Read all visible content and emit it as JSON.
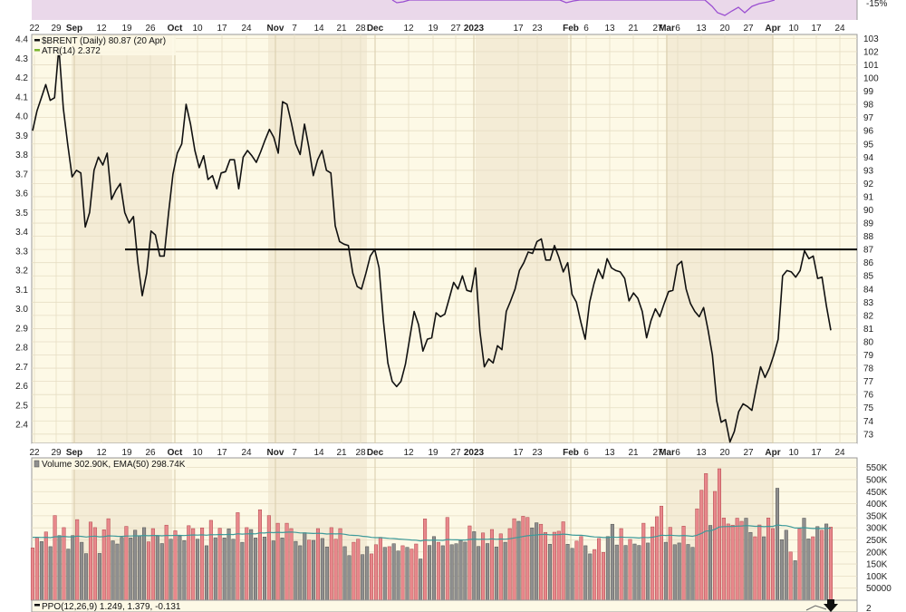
{
  "colors": {
    "page_bg": "#ffffff",
    "panel_bg": "#fdf9e6",
    "month_band": "#f4ecd6",
    "grid": "#e6ddc4",
    "price_line": "#111111",
    "resistance_line": "#000000",
    "volume_up": "#e8888c",
    "volume_up_stroke": "#b0454a",
    "volume_down": "#8f8f8f",
    "volume_down_stroke": "#4e4e4e",
    "ema_line": "#3d9a9a",
    "atr_label": "#7ab530",
    "top_indicator_fill": "#ead8ea",
    "top_indicator_line": "#9b4fd1",
    "arrow": "#111111"
  },
  "date_axis": {
    "labels": [
      {
        "text": "22",
        "bold": false
      },
      {
        "text": "29",
        "bold": false
      },
      {
        "text": "Sep",
        "bold": true
      },
      {
        "text": "12",
        "bold": false
      },
      {
        "text": "19",
        "bold": false
      },
      {
        "text": "26",
        "bold": false
      },
      {
        "text": "Oct",
        "bold": true
      },
      {
        "text": "10",
        "bold": false
      },
      {
        "text": "17",
        "bold": false
      },
      {
        "text": "24",
        "bold": false
      },
      {
        "text": "Nov",
        "bold": true
      },
      {
        "text": "7",
        "bold": false
      },
      {
        "text": "14",
        "bold": false
      },
      {
        "text": "21",
        "bold": false
      },
      {
        "text": "28",
        "bold": false
      },
      {
        "text": "Dec",
        "bold": true
      },
      {
        "text": "12",
        "bold": false
      },
      {
        "text": "19",
        "bold": false
      },
      {
        "text": "27",
        "bold": false
      },
      {
        "text": "2023",
        "bold": true
      },
      {
        "text": "17",
        "bold": false
      },
      {
        "text": "23",
        "bold": false
      },
      {
        "text": "Feb",
        "bold": true
      },
      {
        "text": "6",
        "bold": false
      },
      {
        "text": "13",
        "bold": false
      },
      {
        "text": "21",
        "bold": false
      },
      {
        "text": "27",
        "bold": false
      },
      {
        "text": "Mar",
        "bold": true
      },
      {
        "text": "6",
        "bold": false
      },
      {
        "text": "13",
        "bold": false
      },
      {
        "text": "20",
        "bold": false
      },
      {
        "text": "27",
        "bold": false
      },
      {
        "text": "Apr",
        "bold": true
      },
      {
        "text": "10",
        "bold": false
      },
      {
        "text": "17",
        "bold": false
      },
      {
        "text": "24",
        "bold": false
      }
    ]
  },
  "top_indicator": {
    "right_tick": "-15%"
  },
  "chart_data": [
    {
      "type": "line",
      "legend": [
        "$BRENT (Daily) 80.87 (20 Apr)",
        "ATR(14) 2.372"
      ],
      "left_axis_ticks": [
        4.4,
        4.3,
        4.2,
        4.1,
        4.0,
        3.9,
        3.8,
        3.7,
        3.6,
        3.5,
        3.4,
        3.3,
        3.2,
        3.1,
        3.0,
        2.9,
        2.8,
        2.7,
        2.6,
        2.5,
        2.4
      ],
      "right_axis_ticks": [
        103,
        102,
        101,
        100,
        99,
        98,
        97,
        96,
        95,
        94,
        93,
        92,
        91,
        90,
        89,
        88,
        87,
        86,
        85,
        84,
        83,
        82,
        81,
        80,
        79,
        78,
        77,
        76,
        75,
        74,
        73
      ],
      "ylim": [
        72.3,
        103.3
      ],
      "horizontal_line": 87.0,
      "series": [
        {
          "values": [
            96,
            97.5,
            98.5,
            99.5,
            98.3,
            98.5,
            102.3,
            97.7,
            95,
            92.5,
            93,
            92.8,
            88.7,
            89.8,
            93,
            94,
            93.4,
            94.3,
            90.8,
            91.5,
            92,
            89.8,
            89,
            89.5,
            86,
            83.5,
            85.2,
            88.4,
            88.1,
            86.5,
            86.5,
            89.8,
            92.7,
            94.3,
            95,
            98,
            96.5,
            94.5,
            93.2,
            94.1,
            92.3,
            92.6,
            91.6,
            92.8,
            92.9,
            93.8,
            93.8,
            91.6,
            94,
            94.5,
            94.1,
            93.6,
            94.4,
            95.3,
            96.1,
            95.5,
            94.3,
            98.2,
            98,
            96.6,
            95,
            94.2,
            96.5,
            94.7,
            92.6,
            93.8,
            94.5,
            93,
            92.8,
            88.8,
            87.6,
            87.4,
            87.3,
            85.2,
            84.2,
            84,
            85.2,
            86.5,
            87,
            85.6,
            81.5,
            78.4,
            77,
            76.6,
            77,
            78.3,
            80.3,
            82.3,
            81.3,
            79.3,
            80.2,
            80.3,
            82.2,
            81.9,
            82.1,
            83.3,
            84.5,
            84,
            85,
            83.9,
            83.8,
            85.6,
            80.8,
            78.1,
            78.7,
            78.4,
            79.7,
            79.4,
            82.3,
            83.1,
            84,
            85.4,
            86,
            86.8,
            86.7,
            87.6,
            87.8,
            86.2,
            86.2,
            87.3,
            86.4,
            85.3,
            86,
            83.6,
            83,
            81.5,
            80.2,
            83,
            84.4,
            85.5,
            84.8,
            86.3,
            85.6,
            85.4,
            85.3,
            84.8,
            83.1,
            83.7,
            83.3,
            82.3,
            80.3,
            81.6,
            82.5,
            81.9,
            82.9,
            83.8,
            83.9,
            85.8,
            86.1,
            84,
            82.9,
            82.3,
            81.9,
            82.6,
            80.9,
            79,
            75.5,
            73.9,
            74.1,
            72.4,
            73.2,
            74.7,
            75.3,
            75.1,
            74.8,
            76.5,
            78.1,
            77.3,
            78,
            79,
            80.2,
            85,
            85.4,
            85.3,
            84.9,
            85.4,
            86.9,
            86.3,
            86.5,
            84.8,
            84.9,
            82.7,
            80.87
          ]
        }
      ]
    },
    {
      "type": "bar",
      "legend": "Volume 302.90K, EMA(50) 298.74K",
      "right_axis_labels": [
        "550K",
        "500K",
        "450K",
        "400K",
        "350K",
        "300K",
        "250K",
        "200K",
        "150K",
        "100K",
        "50000"
      ],
      "ylim": [
        0,
        575000
      ],
      "ema50": 298740,
      "up_days": [
        1,
        1,
        0,
        1,
        0,
        1,
        0,
        1,
        0,
        0,
        1,
        0,
        0,
        1,
        1,
        0,
        1,
        1,
        0,
        0,
        0,
        1,
        0,
        0,
        0,
        0,
        1,
        1,
        0,
        0,
        1,
        0,
        1,
        0,
        0,
        1,
        1,
        0,
        1,
        0,
        1,
        0,
        1,
        0,
        0,
        0,
        1,
        0,
        1,
        0,
        0,
        1,
        0,
        1,
        0,
        1,
        0,
        1,
        1,
        0,
        0,
        0,
        1,
        0,
        1,
        0,
        0,
        1,
        1,
        1,
        0,
        0,
        1,
        1,
        0,
        0,
        1,
        1,
        1,
        0,
        1,
        0,
        0,
        1,
        0,
        1,
        1,
        0,
        1,
        0,
        0,
        1,
        0,
        1,
        0,
        0,
        0,
        0,
        1,
        0,
        0,
        1,
        0,
        1,
        0,
        1,
        0,
        1,
        1,
        0,
        1,
        1,
        0,
        0,
        1,
        1,
        0,
        1,
        1,
        1,
        0,
        0,
        1,
        1,
        0,
        0,
        1,
        1,
        1,
        0,
        0,
        0,
        1,
        0,
        1,
        0,
        0,
        1,
        0,
        1,
        1,
        1,
        0,
        1,
        0,
        0,
        1,
        0,
        0,
        1,
        1,
        1,
        0,
        1,
        1,
        1,
        1,
        1,
        1,
        1,
        0,
        0,
        1,
        1,
        0,
        1,
        1,
        0,
        0,
        0,
        1,
        0,
        1,
        0,
        0,
        1,
        0,
        1,
        0,
        1,
        1,
        1
      ],
      "values": [
        217000,
        260000,
        243000,
        283000,
        222000,
        351000,
        268000,
        301000,
        212000,
        268000,
        334000,
        240000,
        193000,
        324000,
        301000,
        194000,
        292000,
        338000,
        246000,
        233000,
        260000,
        306000,
        258000,
        290000,
        267000,
        301000,
        242000,
        297000,
        267000,
        235000,
        311000,
        253000,
        288000,
        267000,
        247000,
        309000,
        297000,
        253000,
        300000,
        226000,
        331000,
        259000,
        298000,
        258000,
        296000,
        253000,
        363000,
        240000,
        301000,
        293000,
        258000,
        375000,
        262000,
        351000,
        246000,
        319000,
        258000,
        319000,
        297000,
        244000,
        226000,
        280000,
        249000,
        248000,
        297000,
        256000,
        221000,
        301000,
        253000,
        297000,
        222000,
        185000,
        240000,
        253000,
        189000,
        222000,
        192000,
        230000,
        261000,
        219000,
        222000,
        234000,
        204000,
        226000,
        219000,
        212000,
        233000,
        171000,
        337000,
        227000,
        264000,
        240000,
        226000,
        343000,
        230000,
        234000,
        248000,
        241000,
        308000,
        284000,
        223000,
        279000,
        235000,
        293000,
        221000,
        275000,
        240000,
        297000,
        338000,
        327000,
        348000,
        343000,
        300000,
        321000,
        315000,
        281000,
        232000,
        282000,
        286000,
        325000,
        232000,
        215000,
        245000,
        264000,
        226000,
        192000,
        210000,
        256000,
        198000,
        264000,
        315000,
        229000,
        297000,
        227000,
        252000,
        233000,
        227000,
        319000,
        237000,
        304000,
        346000,
        390000,
        240000,
        302000,
        230000,
        237000,
        307000,
        231000,
        219000,
        379000,
        456000,
        525000,
        310000,
        451000,
        545000,
        341000,
        316000,
        311000,
        340000,
        327000,
        340000,
        281000,
        263000,
        312000,
        263000,
        341000,
        297000,
        464000,
        251000,
        290000,
        200000,
        164000,
        297000,
        340000,
        254000,
        263000,
        305000,
        290000,
        316000,
        302900
      ]
    },
    {
      "type": "line",
      "legend": "PPO(12,26,9) 1.249, 1.379, -0.131",
      "right_axis_labels": [
        "2"
      ]
    }
  ]
}
